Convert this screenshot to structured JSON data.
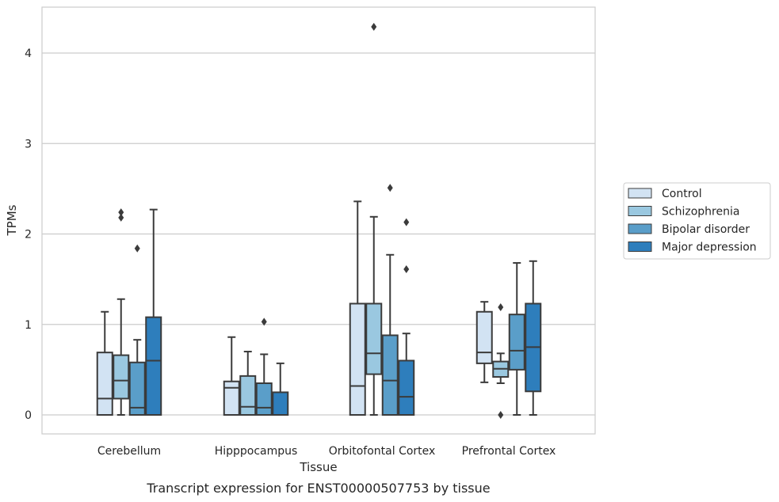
{
  "caption": "Transcript expression for ENST00000507753 by tissue",
  "chart_data": {
    "type": "box",
    "xlabel": "Tissue",
    "ylabel": "TPMs",
    "ylim": [
      -0.2,
      4.5
    ],
    "yticks": [
      0,
      1,
      2,
      3,
      4
    ],
    "grid": "horizontal",
    "legend_placement": "right",
    "categories": [
      "Cerebellum",
      "Hipppocampus",
      "Orbitofontal Cortex",
      "Prefrontal Cortex"
    ],
    "series": [
      {
        "name": "Control",
        "color": "#d2e3f3",
        "boxes": [
          {
            "whisker_low": 0,
            "q1": 0,
            "median": 0.18,
            "q3": 0.69,
            "whisker_high": 1.14,
            "outliers": []
          },
          {
            "whisker_low": 0,
            "q1": 0,
            "median": 0.3,
            "q3": 0.37,
            "whisker_high": 0.86,
            "outliers": []
          },
          {
            "whisker_low": 0,
            "q1": 0,
            "median": 0.32,
            "q3": 1.23,
            "whisker_high": 2.36,
            "outliers": []
          },
          {
            "whisker_low": 0.36,
            "q1": 0.57,
            "median": 0.69,
            "q3": 1.14,
            "whisker_high": 1.25,
            "outliers": []
          }
        ]
      },
      {
        "name": "Schizophrenia",
        "color": "#9ac8e0",
        "boxes": [
          {
            "whisker_low": 0,
            "q1": 0.18,
            "median": 0.38,
            "q3": 0.66,
            "whisker_high": 1.28,
            "outliers": [
              2.24,
              2.18
            ]
          },
          {
            "whisker_low": 0,
            "q1": 0,
            "median": 0.09,
            "q3": 0.43,
            "whisker_high": 0.7,
            "outliers": []
          },
          {
            "whisker_low": 0,
            "q1": 0.45,
            "median": 0.68,
            "q3": 1.23,
            "whisker_high": 2.19,
            "outliers": [
              4.29
            ]
          },
          {
            "whisker_low": 0.35,
            "q1": 0.42,
            "median": 0.51,
            "q3": 0.59,
            "whisker_high": 0.68,
            "outliers": [
              1.19,
              0
            ]
          }
        ]
      },
      {
        "name": "Bipolar disorder",
        "color": "#5a9ec9",
        "boxes": [
          {
            "whisker_low": 0,
            "q1": 0,
            "median": 0.08,
            "q3": 0.58,
            "whisker_high": 0.83,
            "outliers": [
              1.84
            ]
          },
          {
            "whisker_low": 0,
            "q1": 0,
            "median": 0.08,
            "q3": 0.35,
            "whisker_high": 0.67,
            "outliers": [
              1.03
            ]
          },
          {
            "whisker_low": 0,
            "q1": 0,
            "median": 0.38,
            "q3": 0.88,
            "whisker_high": 1.77,
            "outliers": [
              2.51
            ]
          },
          {
            "whisker_low": 0,
            "q1": 0.5,
            "median": 0.71,
            "q3": 1.11,
            "whisker_high": 1.68,
            "outliers": []
          }
        ]
      },
      {
        "name": "Major depression",
        "color": "#2e7ebc",
        "boxes": [
          {
            "whisker_low": 0,
            "q1": 0,
            "median": 0.6,
            "q3": 1.08,
            "whisker_high": 2.27,
            "outliers": []
          },
          {
            "whisker_low": 0,
            "q1": 0,
            "median": 0,
            "q3": 0.25,
            "whisker_high": 0.57,
            "outliers": []
          },
          {
            "whisker_low": 0,
            "q1": 0,
            "median": 0.2,
            "q3": 0.6,
            "whisker_high": 0.9,
            "outliers": [
              2.13,
              1.61
            ]
          },
          {
            "whisker_low": 0,
            "q1": 0.26,
            "median": 0.75,
            "q3": 1.23,
            "whisker_high": 1.7,
            "outliers": []
          }
        ]
      }
    ]
  }
}
